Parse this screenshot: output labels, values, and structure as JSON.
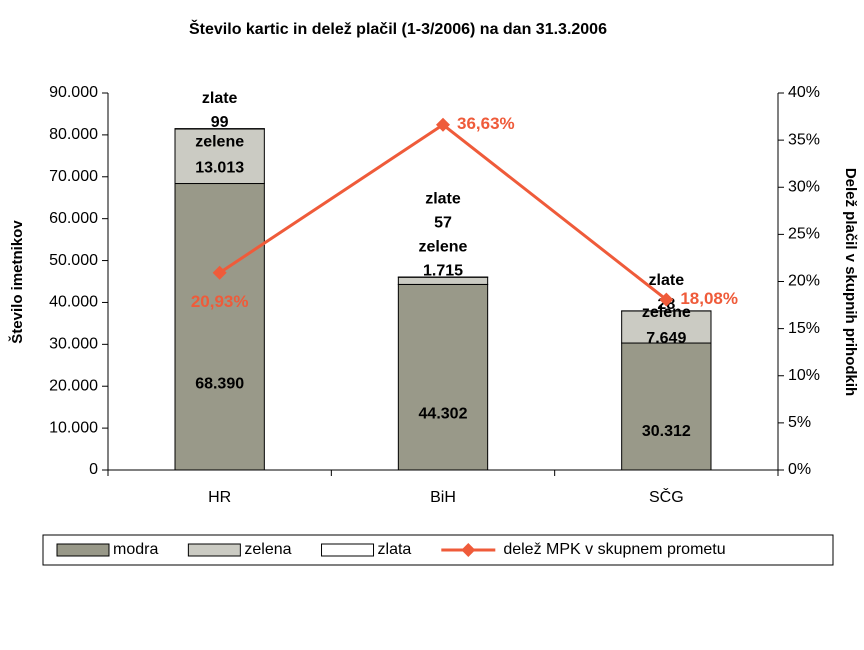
{
  "chart_data": {
    "type": "bar",
    "stacked": true,
    "title": "Število kartic in delež plačil (1-3/2006) na dan 31.3.2006",
    "ylabel": "Število imetnikov",
    "y2label": "Delež plačil v skupnih prihodkih",
    "categories": [
      "HR",
      "BiH",
      "SČG"
    ],
    "series": [
      {
        "name": "modra",
        "color": "#999989",
        "values": [
          68390,
          44302,
          30312
        ],
        "value_labels": [
          "68.390",
          "44.302",
          "30.312"
        ]
      },
      {
        "name": "zelena",
        "data_label_name": "zelene",
        "color": "#cbcbc3",
        "values": [
          13013,
          1715,
          7649
        ],
        "value_labels": [
          "13.013",
          "1.715",
          "7.649"
        ]
      },
      {
        "name": "zlata",
        "data_label_name": "zlate",
        "color": "#ffffff",
        "values": [
          99,
          57,
          28
        ]
      },
      {
        "name": "delež MPK v skupnem prometu",
        "type": "line",
        "axis": "y2",
        "color": "#ef5b3a",
        "values": [
          20.93,
          36.63,
          18.08
        ],
        "value_labels": [
          "20,93%",
          "36,63%",
          "18,08%"
        ]
      }
    ],
    "ylim": [
      0,
      90000
    ],
    "yticks": [
      0,
      {
        "value": 10000,
        "label": "10.000"
      },
      {
        "value": 20000,
        "label": "20.000"
      },
      {
        "value": 30000,
        "label": "30.000"
      },
      {
        "value": 40000,
        "label": "40.000"
      },
      {
        "value": 50000,
        "label": "50.000"
      },
      {
        "value": 60000,
        "label": "60.000"
      },
      {
        "value": 70000,
        "label": "70.000"
      },
      {
        "value": 80000,
        "label": "80.000"
      },
      {
        "value": 90000,
        "label": "90.000"
      }
    ],
    "y2lim": [
      0,
      40
    ],
    "y2ticks": [
      {
        "value": 0,
        "label": "0%"
      },
      {
        "value": 5,
        "label": "5%"
      },
      {
        "value": 10,
        "label": "10%"
      },
      {
        "value": 15,
        "label": "15%"
      },
      {
        "value": 20,
        "label": "20%"
      },
      {
        "value": 25,
        "label": "25%"
      },
      {
        "value": 30,
        "label": "30%"
      },
      {
        "value": 35,
        "label": "35%"
      },
      {
        "value": 40,
        "label": "40%"
      }
    ],
    "grid": false,
    "legend": "bottom"
  }
}
